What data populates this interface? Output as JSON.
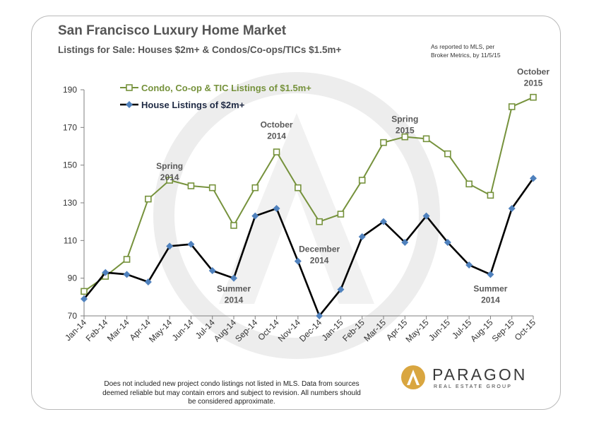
{
  "header": {
    "title": "San Francisco Luxury Home Market",
    "subtitle": "Listings for Sale: Houses $2m+ & Condos/Co-ops/TICs $1.5m+",
    "source_line1": "As reported to MLS, per",
    "source_line2": "Broker Metrics, by 11/5/15"
  },
  "footnote": {
    "line1": "Does not included new project condo listings not listed in MLS. Data from sources",
    "line2": "deemed reliable but may contain errors and subject to revision.  All numbers should",
    "line3": "be considered approximate."
  },
  "logo": {
    "name": "PARAGON",
    "tagline": "REAL ESTATE GROUP",
    "color": "#d9a640"
  },
  "chart_data": {
    "type": "line",
    "categories": [
      "Jan-14",
      "Feb-14",
      "Mar-14",
      "Apr-14",
      "May-14",
      "Jun-14",
      "Jul-14",
      "Aug-14",
      "Sep-14",
      "Oct-14",
      "Nov-14",
      "Dec-14",
      "Jan-15",
      "Feb-15",
      "Mar-15",
      "Apr-15",
      "May-15",
      "Jun-15",
      "Jul-15",
      "Aug-15",
      "Sep-15",
      "Oct-15"
    ],
    "ylim": [
      70,
      190
    ],
    "yticks": [
      70,
      90,
      110,
      130,
      150,
      170,
      190
    ],
    "grid": false,
    "legend_position": "top-left",
    "series": [
      {
        "name": "Condo, Co-op & TIC Listings of $1.5m+",
        "color": "#76923c",
        "marker": "hollow-square",
        "values": [
          83,
          91,
          100,
          132,
          142,
          139,
          138,
          118,
          138,
          157,
          138,
          120,
          124,
          142,
          162,
          165,
          164,
          156,
          140,
          134,
          181,
          186
        ]
      },
      {
        "name": "House Listings of $2m+",
        "color": "#000000",
        "marker": "diamond",
        "marker_color": "#4f81bd",
        "values": [
          79,
          93,
          92,
          88,
          107,
          108,
          94,
          90,
          123,
          127,
          99,
          70,
          84,
          112,
          120,
          109,
          123,
          109,
          97,
          92,
          127,
          143
        ]
      }
    ],
    "annotations": [
      {
        "lines": [
          "Spring",
          "2014"
        ],
        "x": "May-14",
        "y": 148
      },
      {
        "lines": [
          "October",
          "2014"
        ],
        "x": "Oct-14",
        "y": 170
      },
      {
        "lines": [
          "Summer",
          "2014"
        ],
        "x": "Aug-14",
        "y": 83
      },
      {
        "lines": [
          "December",
          "2014"
        ],
        "x": "Dec-14",
        "y": 104
      },
      {
        "lines": [
          "Spring",
          "2015"
        ],
        "x": "Apr-15",
        "y": 173
      },
      {
        "lines": [
          "October",
          "2015"
        ],
        "x": "Oct-15",
        "y": 198
      },
      {
        "lines": [
          "Summer",
          "2014"
        ],
        "x": "Aug-15",
        "y": 83
      }
    ]
  }
}
